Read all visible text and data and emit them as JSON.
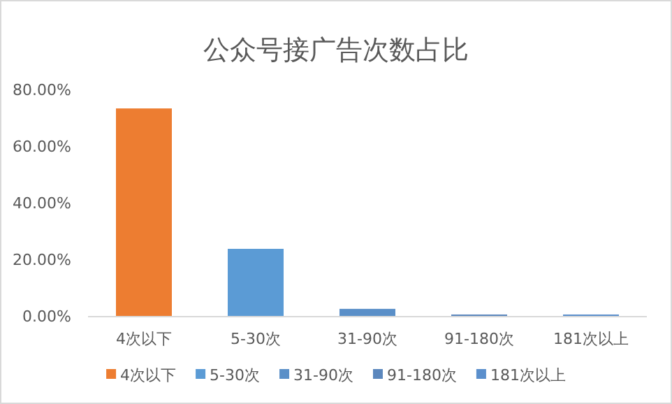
{
  "chart_data": {
    "type": "bar",
    "title": "公众号接广告次数占比",
    "categories": [
      "4次以下",
      "5-30次",
      "31-90次",
      "91-180次",
      "181次以上"
    ],
    "series": [
      {
        "name": "4次以下",
        "color": "#ed7d31",
        "values": [
          73.3,
          null,
          null,
          null,
          null
        ]
      },
      {
        "name": "5-30次",
        "color": "#5b9bd5",
        "values": [
          null,
          23.7,
          null,
          null,
          null
        ]
      },
      {
        "name": "31-90次",
        "color": "#5a8fc8",
        "values": [
          null,
          null,
          2.5,
          null,
          null
        ]
      },
      {
        "name": "91-180次",
        "color": "#5b87bd",
        "values": [
          null,
          null,
          null,
          0.5,
          null
        ]
      },
      {
        "name": "181次以上",
        "color": "#5b8fcc",
        "values": [
          null,
          null,
          null,
          null,
          0.5
        ]
      }
    ],
    "stacked": true,
    "ylim": [
      0,
      80
    ],
    "yticks": [
      {
        "value": 0,
        "label": "0.00%"
      },
      {
        "value": 20,
        "label": "20.00%"
      },
      {
        "value": 40,
        "label": "40.00%"
      },
      {
        "value": 60,
        "label": "60.00%"
      },
      {
        "value": 80,
        "label": "80.00%"
      }
    ],
    "legend": "bottom"
  }
}
